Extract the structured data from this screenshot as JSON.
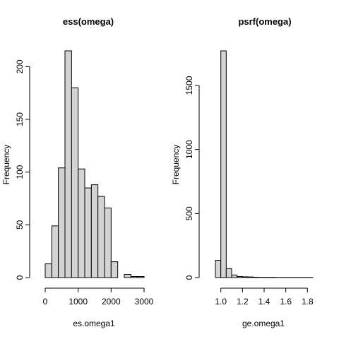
{
  "chart_data": [
    {
      "type": "bar",
      "title": "ess(omega)",
      "xlabel": "es.omega1",
      "ylabel": "Frequency",
      "xlim": [
        0,
        3000
      ],
      "ylim": [
        0,
        215
      ],
      "xticks": [
        0,
        1000,
        2000,
        3000
      ],
      "xtick_labels": [
        "0",
        "1000",
        "2000",
        "3000"
      ],
      "yticks": [
        0,
        50,
        100,
        150,
        200
      ],
      "ytick_labels": [
        "0",
        "50",
        "100",
        "150",
        "200"
      ],
      "bin_edges": [
        0,
        200,
        400,
        600,
        800,
        1000,
        1200,
        1400,
        1600,
        1800,
        2000,
        2200,
        2400,
        2600,
        2800,
        3000
      ],
      "values": [
        13,
        49,
        104,
        215,
        180,
        103,
        85,
        88,
        77,
        66,
        15,
        0,
        3,
        1,
        1
      ],
      "grid": false,
      "bar_color": "#d3d3d3"
    },
    {
      "type": "bar",
      "title": "psrf(omega)",
      "xlabel": "ge.omega1",
      "ylabel": "Frequency",
      "xlim": [
        0.95,
        1.85
      ],
      "ylim": [
        0,
        1770
      ],
      "xticks": [
        1.0,
        1.2,
        1.4,
        1.6,
        1.8
      ],
      "xtick_labels": [
        "1.0",
        "1.2",
        "1.4",
        "1.6",
        "1.8"
      ],
      "yticks": [
        0,
        500,
        1000,
        1500
      ],
      "ytick_labels": [
        "0",
        "500",
        "1000",
        "1500"
      ],
      "bin_edges": [
        0.95,
        1.0,
        1.05,
        1.1,
        1.15,
        1.2,
        1.25,
        1.3,
        1.35,
        1.4,
        1.45,
        1.5,
        1.55,
        1.6,
        1.65,
        1.7,
        1.75,
        1.8,
        1.85
      ],
      "values": [
        135,
        1770,
        70,
        20,
        8,
        6,
        5,
        3,
        2,
        2,
        2,
        1,
        1,
        1,
        1,
        1,
        1,
        1
      ],
      "grid": false,
      "bar_color": "#d3d3d3"
    }
  ]
}
